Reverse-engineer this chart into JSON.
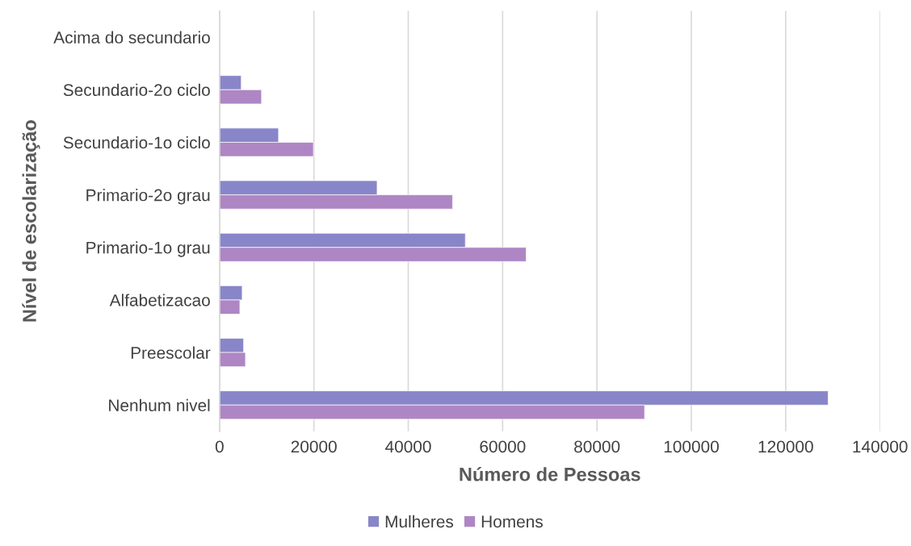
{
  "chart_data": {
    "type": "bar",
    "orientation": "horizontal",
    "categories": [
      "Acima do secundario",
      "Secundario-2o ciclo",
      "Secundario-1o ciclo",
      "Primario-2o grau",
      "Primario-1o grau",
      "Alfabetizacao",
      "Preescolar",
      "Nenhum nivel"
    ],
    "series": [
      {
        "name": "Mulheres",
        "color": "#8886c8",
        "values": [
          null,
          4600,
          12500,
          33400,
          52100,
          4800,
          5100,
          129000
        ]
      },
      {
        "name": "Homens",
        "color": "#ae86c4",
        "values": [
          null,
          8900,
          19900,
          49400,
          65000,
          4300,
          5500,
          90100
        ]
      }
    ],
    "xlabel": "Número de Pessoas",
    "ylabel": "Nível de escolarização",
    "xlim": [
      0,
      140000
    ],
    "xticks": [
      0,
      20000,
      40000,
      60000,
      80000,
      100000,
      120000,
      140000
    ],
    "grid": "x",
    "legend": "bottom"
  }
}
